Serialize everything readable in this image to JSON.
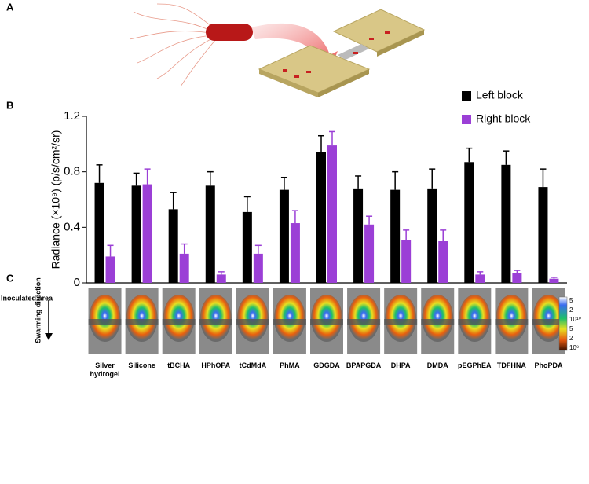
{
  "chart_data": {
    "type": "bar",
    "panel_labels": [
      "A",
      "B",
      "C"
    ],
    "ylabel": "Radiance (×10⁹) (p/s/cm²/sr)",
    "categories": [
      "Silver hydrogel",
      "Silicone",
      "tBCHA",
      "HPhOPA",
      "tCdMdA",
      "PhMA",
      "GDGDA",
      "BPAPGDA",
      "DHPA",
      "DMDA",
      "pEGPhEA",
      "TDFHNA",
      "PhoPDA"
    ],
    "series": [
      {
        "name": "Left block",
        "color": "#000000",
        "values": [
          0.72,
          0.7,
          0.53,
          0.7,
          0.51,
          0.67,
          0.94,
          0.68,
          0.67,
          0.68,
          0.87,
          0.85,
          0.69
        ],
        "errors": [
          0.13,
          0.09,
          0.12,
          0.1,
          0.11,
          0.09,
          0.12,
          0.09,
          0.13,
          0.14,
          0.1,
          0.1,
          0.13
        ]
      },
      {
        "name": "Right block",
        "color": "#9b3fd6",
        "values": [
          0.19,
          0.71,
          0.21,
          0.06,
          0.21,
          0.43,
          0.99,
          0.42,
          0.31,
          0.3,
          0.06,
          0.07,
          0.03
        ],
        "errors": [
          0.08,
          0.11,
          0.07,
          0.02,
          0.06,
          0.09,
          0.1,
          0.06,
          0.07,
          0.08,
          0.02,
          0.02,
          0.01
        ]
      }
    ],
    "ylim": [
      0,
      1.2
    ],
    "yticks": [
      0,
      0.4,
      0.8,
      1.2
    ],
    "legend": "upper right",
    "annotations": [
      "Inoculated area",
      "Swarming direction"
    ],
    "colorbar_labels": [
      "5",
      "2",
      "10¹⁰",
      "5",
      "2",
      "10⁹"
    ]
  }
}
